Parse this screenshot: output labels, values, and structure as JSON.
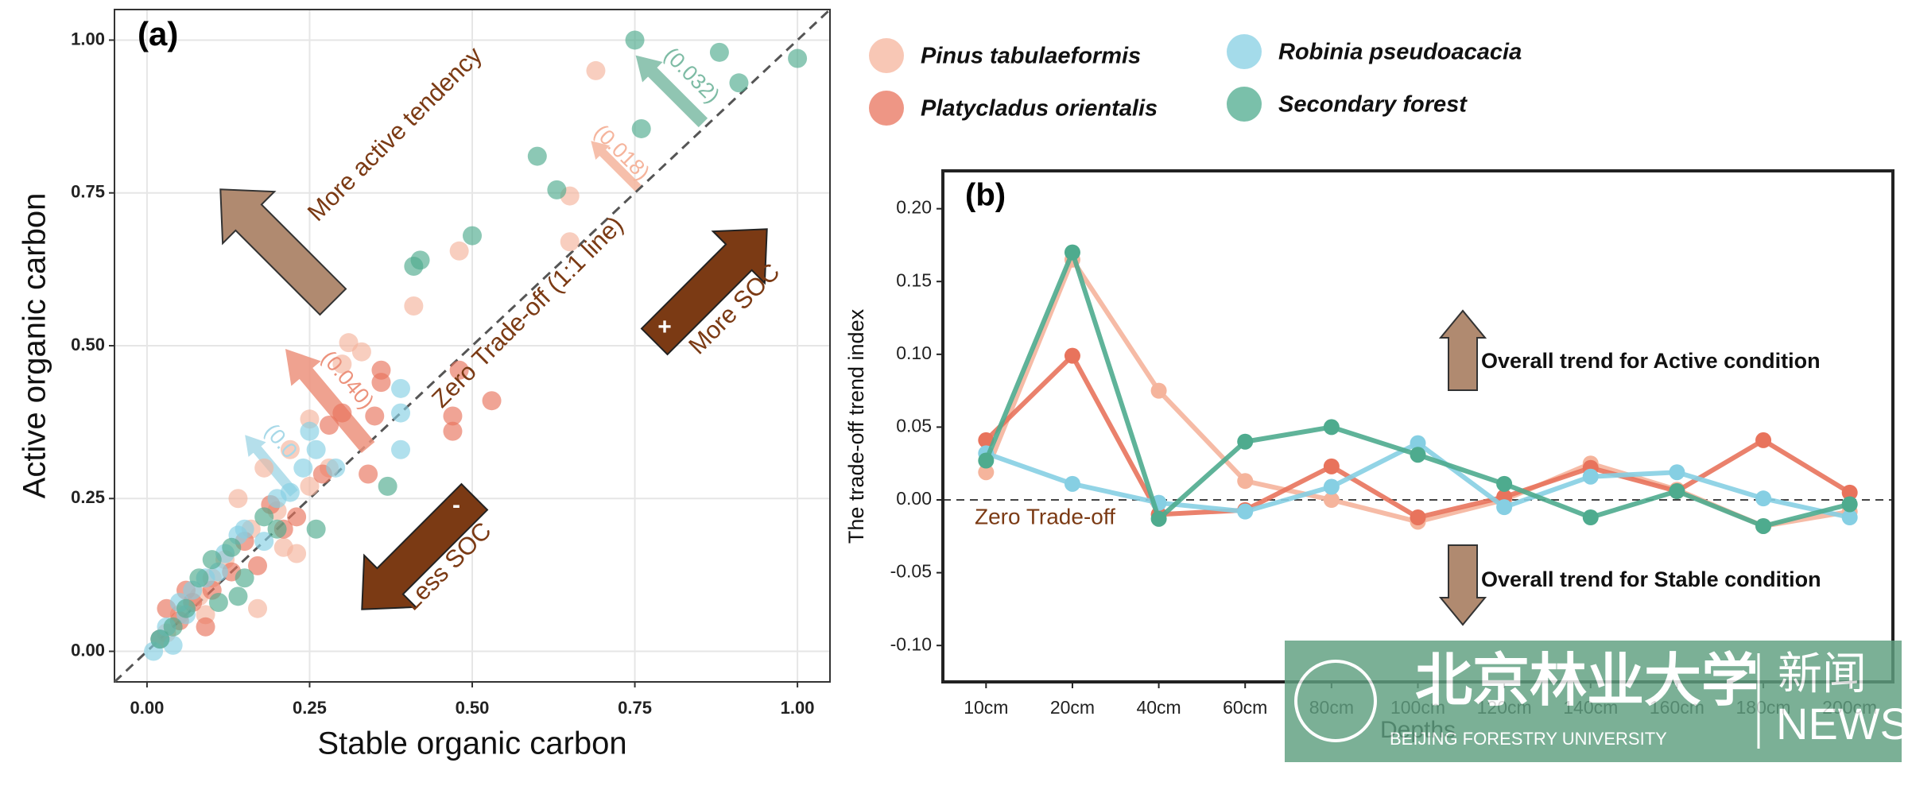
{
  "chart_data": [
    {
      "type": "scatter",
      "title": "(a)",
      "xlabel": "Stable organic carbon",
      "ylabel": "Active organic carbon",
      "xlim": [
        -0.05,
        1.05
      ],
      "ylim": [
        -0.05,
        1.05
      ],
      "xticks": [
        {
          "value": 0,
          "label": "0.00"
        },
        {
          "value": 0.25,
          "label": "0.25"
        },
        {
          "value": 0.5,
          "label": "0.50"
        },
        {
          "value": 0.75,
          "label": "0.75"
        },
        {
          "value": 1,
          "label": "1.00"
        }
      ],
      "yticks": [
        {
          "value": 0,
          "label": "0.00"
        },
        {
          "value": 0.25,
          "label": "0.25"
        },
        {
          "value": 0.5,
          "label": "0.50"
        },
        {
          "value": 0.75,
          "label": "0.75"
        },
        {
          "value": 1,
          "label": "1.00"
        }
      ],
      "grid": true,
      "annotations": [
        "More active tendency",
        "Zero Trade-off (1:1 line)",
        "More SOC",
        "+",
        "Less SOC",
        "-",
        "(0.032)",
        "(0.018)",
        "(0.040)",
        "(0.0"
      ],
      "series": [
        {
          "name": "Pinus tabulaeformis",
          "color": "#f5b49c",
          "x": [
            0.69,
            0.65,
            0.65,
            0.41,
            0.48,
            0.31,
            0.33,
            0.3,
            0.25,
            0.22,
            0.18,
            0.14,
            0.16,
            0.2,
            0.23,
            0.17,
            0.12,
            0.1,
            0.08,
            0.05,
            0.03,
            0.28,
            0.21,
            0.25,
            0.09
          ],
          "values": [
            0.95,
            0.745,
            0.67,
            0.565,
            0.655,
            0.505,
            0.49,
            0.47,
            0.38,
            0.33,
            0.3,
            0.25,
            0.2,
            0.23,
            0.16,
            0.07,
            0.15,
            0.12,
            0.09,
            0.06,
            0.03,
            0.3,
            0.17,
            0.27,
            0.06
          ]
        },
        {
          "name": "Platycladus orientalis",
          "color": "#e8735c",
          "x": [
            0.53,
            0.47,
            0.47,
            0.48,
            0.36,
            0.36,
            0.35,
            0.3,
            0.28,
            0.27,
            0.34,
            0.21,
            0.19,
            0.15,
            0.13,
            0.1,
            0.07,
            0.05,
            0.03,
            0.02,
            0.23,
            0.17,
            0.09,
            0.06
          ],
          "values": [
            0.41,
            0.36,
            0.385,
            0.46,
            0.46,
            0.44,
            0.385,
            0.39,
            0.37,
            0.29,
            0.29,
            0.2,
            0.24,
            0.18,
            0.13,
            0.1,
            0.08,
            0.05,
            0.07,
            0.02,
            0.22,
            0.14,
            0.04,
            0.1
          ]
        },
        {
          "name": "Robinia pseudoacacia",
          "color": "#86cfe3",
          "x": [
            0.39,
            0.39,
            0.39,
            0.25,
            0.26,
            0.24,
            0.29,
            0.2,
            0.15,
            0.14,
            0.12,
            0.09,
            0.07,
            0.05,
            0.03,
            0.01,
            0.02,
            0.04,
            0.11,
            0.18,
            0.06,
            0.22
          ],
          "values": [
            0.43,
            0.39,
            0.33,
            0.36,
            0.33,
            0.3,
            0.3,
            0.25,
            0.2,
            0.19,
            0.16,
            0.12,
            0.1,
            0.08,
            0.04,
            0.0,
            0.02,
            0.01,
            0.13,
            0.18,
            0.06,
            0.26
          ]
        },
        {
          "name": "Secondary forest",
          "color": "#4eab8e",
          "x": [
            0.75,
            0.88,
            0.91,
            1.0,
            0.76,
            0.6,
            0.63,
            0.5,
            0.42,
            0.41,
            0.37,
            0.26,
            0.18,
            0.14,
            0.13,
            0.1,
            0.08,
            0.06,
            0.04,
            0.2,
            0.15,
            0.02,
            0.11
          ],
          "values": [
            1.0,
            0.98,
            0.93,
            0.97,
            0.855,
            0.81,
            0.755,
            0.68,
            0.64,
            0.63,
            0.27,
            0.2,
            0.22,
            0.09,
            0.17,
            0.15,
            0.12,
            0.07,
            0.04,
            0.2,
            0.12,
            0.02,
            0.08
          ]
        }
      ]
    },
    {
      "type": "line",
      "title": "(b)",
      "xlabel": "Depths",
      "ylabel": "The trade-off trend index",
      "categories": [
        "10cm",
        "20cm",
        "40cm",
        "60cm",
        "80cm",
        "100cm",
        "120cm",
        "140cm",
        "160cm",
        "180cm",
        "200cm"
      ],
      "ylim": [
        -0.125,
        0.226
      ],
      "yticks": [
        {
          "value": -0.1,
          "label": "-0.10"
        },
        {
          "value": -0.05,
          "label": "-0.05"
        },
        {
          "value": 0,
          "label": "0.00"
        },
        {
          "value": 0.05,
          "label": "0.05"
        },
        {
          "value": 0.1,
          "label": "0.10"
        },
        {
          "value": 0.15,
          "label": "0.15"
        },
        {
          "value": 0.2,
          "label": "0.20"
        }
      ],
      "annotations": [
        "Zero Trade-off",
        "Overall trend for Active condition",
        "Overall trend for Stable condition"
      ],
      "series": [
        {
          "color": "#f5b49c",
          "values": [
            0.019,
            0.165,
            0.075,
            0.013,
            0.0,
            -0.015,
            0.0,
            0.025,
            0.007,
            -0.018,
            -0.008
          ]
        },
        {
          "color": "#e8735c",
          "values": [
            0.041,
            0.099,
            -0.01,
            -0.007,
            0.023,
            -0.012,
            0.002,
            0.022,
            0.006,
            0.041,
            0.005
          ]
        },
        {
          "color": "#86cfe3",
          "values": [
            0.032,
            0.011,
            -0.002,
            -0.008,
            0.009,
            0.039,
            -0.005,
            0.016,
            0.019,
            0.001,
            -0.012
          ]
        },
        {
          "color": "#4eab8e",
          "values": [
            0.027,
            0.17,
            -0.013,
            0.04,
            0.05,
            0.031,
            0.011,
            -0.012,
            0.006,
            -0.018,
            -0.003
          ]
        }
      ]
    }
  ],
  "watermark": {
    "name": "北京林业大学",
    "english": "BEIJING FORESTRY UNIVERSITY",
    "section": "新闻",
    "section_en": "NEWS"
  }
}
